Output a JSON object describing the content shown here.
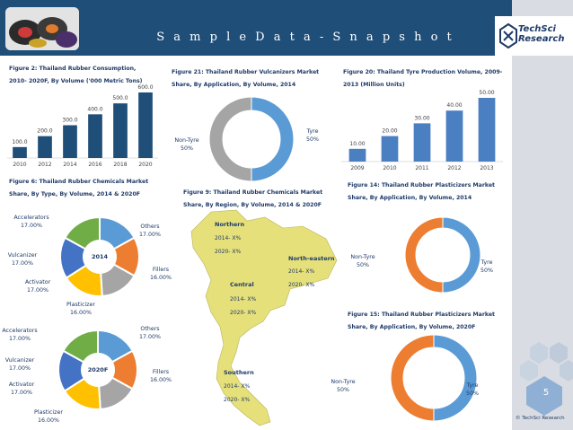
{
  "header": {
    "title": "S a m p l e   D a t a  -  S n a p s h o t",
    "logo_line1": "TechSci",
    "logo_line2": "Research",
    "page_number": "5",
    "copyright": "© TechSci Research"
  },
  "figures": {
    "fig2": {
      "title_line1": "Figure 2: Thailand Rubber Consumption,",
      "title_line2": "2010- 2020F, By Volume ('000 Metric Tons)"
    },
    "fig21": {
      "title_line1": "Figure 21: Thailand Rubber Vulcanizers Market",
      "title_line2": "Share, By Application, By Volume, 2014"
    },
    "fig20": {
      "title_line1": "Figure 20: Thailand Tyre Production Volume, 2009-",
      "title_line2": "2013 (Million Units)"
    },
    "fig6": {
      "title_line1": "Figure  6:  Thailand  Rubber  Chemicals  Market",
      "title_line2": "Share, By Type, By Volume, 2014 & 2020F"
    },
    "fig9": {
      "title_line1": "Figure  9:  Thailand  Rubber  Chemicals  Market",
      "title_line2": "Share, By Region, By Volume, 2014 & 2020F"
    },
    "fig14": {
      "title_line1": "Figure  14:  Thailand  Rubber  Plasticizers  Market",
      "title_line2": "Share, By Application, By Volume, 2014"
    },
    "fig15": {
      "title_line1": "Figure 15: Thailand Rubber Plasticizers Market",
      "title_line2": "Share, By Application, By Volume, 2020F"
    }
  },
  "map": {
    "regions": [
      {
        "name": "Northern",
        "line1": "2014- X%",
        "line2": "2020- X%"
      },
      {
        "name": "North-eastern",
        "line1": "2014- X%",
        "line2": "2020- X%"
      },
      {
        "name": "Central",
        "line1": "2014- X%",
        "line2": "2020- X%"
      },
      {
        "name": "Southern",
        "line1": "2014- X%",
        "line2": "2020- X%"
      }
    ],
    "fill": "#e6e07a"
  },
  "colors": {
    "bar_dark": "#1f4e79",
    "bar_blue": "#4a7fc1",
    "blue": "#5b9bd5",
    "gray": "#a5a5a5",
    "orange": "#ed7d31",
    "yellow": "#ffc000",
    "royal": "#4472c4",
    "green": "#70ad47"
  },
  "chart_data": [
    {
      "id": "fig2",
      "type": "bar",
      "categories": [
        "2010",
        "2012",
        "2014",
        "2016",
        "2018",
        "2020"
      ],
      "values": [
        100.0,
        200.0,
        300.0,
        400.0,
        500.0,
        600.0
      ],
      "value_labels": [
        "100.0",
        "200.0",
        "300.0",
        "400.0",
        "500.0",
        "600.0"
      ],
      "ylim": [
        0,
        600
      ]
    },
    {
      "id": "fig21",
      "type": "pie",
      "variant": "donut",
      "labels": [
        "Tyre",
        "Non-Tyre"
      ],
      "values": [
        50,
        50
      ],
      "value_labels": [
        "50%",
        "50%"
      ]
    },
    {
      "id": "fig20",
      "type": "bar",
      "categories": [
        "2009",
        "2010",
        "2011",
        "2012",
        "2013"
      ],
      "values": [
        10.0,
        20.0,
        30.0,
        40.0,
        50.0
      ],
      "value_labels": [
        "10.00",
        "20.00",
        "30.00",
        "40.00",
        "50.00"
      ],
      "ylim": [
        0,
        50
      ]
    },
    {
      "id": "fig6-2014",
      "type": "pie",
      "variant": "donut",
      "center_label": "2014",
      "labels": [
        "Others",
        "Fillers",
        "Plasticizer",
        "Activator",
        "Vulcanizer",
        "Accelerators"
      ],
      "values": [
        17,
        16,
        16,
        17,
        17,
        17
      ],
      "value_labels": [
        "17.00%",
        "16.00%",
        "16.00%",
        "17.00%",
        "17.00%",
        "17.00%"
      ]
    },
    {
      "id": "fig6-2020F",
      "type": "pie",
      "variant": "donut",
      "center_label": "2020F",
      "labels": [
        "Others",
        "Fillers",
        "Plasticizer",
        "Activator",
        "Vulcanizer",
        "Accelerators"
      ],
      "values": [
        17,
        16,
        16,
        17,
        17,
        17
      ],
      "value_labels": [
        "17.00%",
        "16.00%",
        "16.00%",
        "17.00%",
        "17.00%",
        "17.00%"
      ]
    },
    {
      "id": "fig14",
      "type": "pie",
      "variant": "donut",
      "labels": [
        "Tyre",
        "Non-Tyre"
      ],
      "values": [
        50,
        50
      ],
      "value_labels": [
        "50%",
        "50%"
      ]
    },
    {
      "id": "fig15",
      "type": "pie",
      "variant": "donut",
      "labels": [
        "Tyre",
        "Non-Tyre"
      ],
      "values": [
        50,
        50
      ],
      "value_labels": [
        "50%",
        "50%"
      ]
    }
  ]
}
